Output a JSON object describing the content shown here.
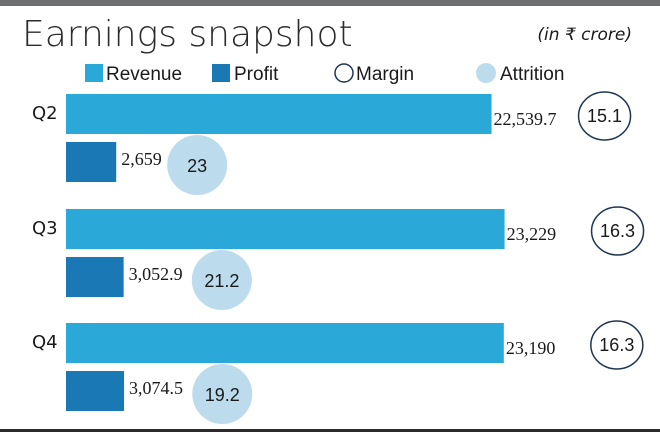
{
  "header": {
    "title": "Earnings snapshot",
    "unit": "(in ₹ crore)"
  },
  "colors": {
    "revenue": "#2aa9d8",
    "profit": "#1a78b4",
    "margin_stroke": "#1f3550",
    "attrition": "#bcdcee",
    "top_rule": "#6d6e70",
    "bottom_rule": "#2b2b2b"
  },
  "legend": {
    "revenue": "Revenue",
    "profit": "Profit",
    "margin": "Margin",
    "attrition": "Attrition"
  },
  "chart_data": {
    "type": "bar",
    "orientation": "horizontal",
    "title": "Earnings snapshot",
    "unit": "(in ₹ crore)",
    "categories": [
      "Q2",
      "Q3",
      "Q4"
    ],
    "series": [
      {
        "name": "Revenue",
        "values": [
          22539.7,
          23229,
          23190
        ],
        "labels": [
          "22,539.7",
          "23,229",
          "23,190"
        ]
      },
      {
        "name": "Profit",
        "values": [
          2659,
          3052.9,
          3074.5
        ],
        "labels": [
          "2,659",
          "3,052.9",
          "3,074.5"
        ]
      },
      {
        "name": "Margin",
        "values": [
          15.1,
          16.3,
          16.3
        ],
        "labels": [
          "15.1",
          "16.3",
          "16.3"
        ]
      },
      {
        "name": "Attrition",
        "values": [
          23,
          21.2,
          19.2
        ],
        "labels": [
          "23",
          "21.2",
          "19.2"
        ]
      }
    ]
  }
}
